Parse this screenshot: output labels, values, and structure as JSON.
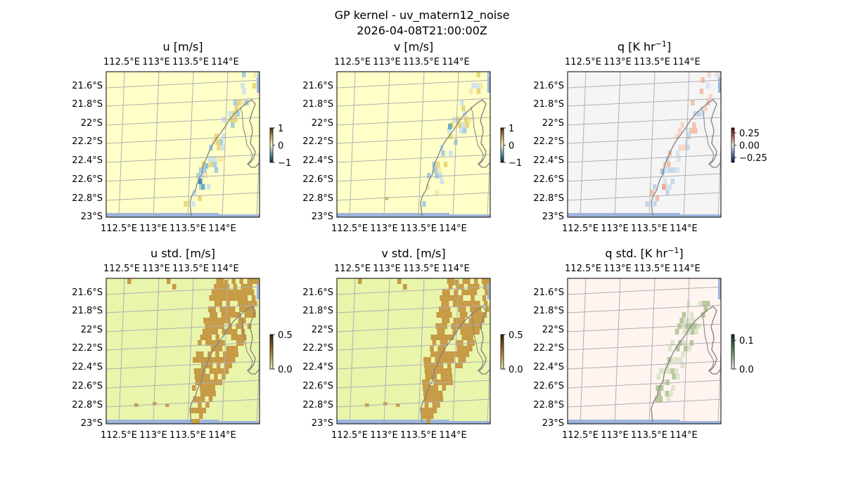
{
  "figure": {
    "title_line1": "GP kernel - uv_matern12_noise",
    "title_line2": "2026-04-08T21:00:00Z"
  },
  "chart_data": [
    {
      "type": "heatmap",
      "title": "u [m/s]",
      "xticks": [
        "112.5°E",
        "113°E",
        "113.5°E",
        "114°E"
      ],
      "yticks": [
        "21.6°S",
        "21.8°S",
        "22°S",
        "22.2°S",
        "22.4°S",
        "22.6°S",
        "22.8°S",
        "23°S"
      ],
      "colorbar": {
        "ticks": [
          "1",
          "0",
          "−1"
        ],
        "range": [
          -1,
          1
        ]
      },
      "background_color": "#ffffc8",
      "features": "sparse blue/yellow cells along coastline near 113.8°E",
      "cmap": "u"
    },
    {
      "type": "heatmap",
      "title": "v [m/s]",
      "xticks": [
        "112.5°E",
        "113°E",
        "113.5°E",
        "114°E"
      ],
      "yticks": [
        "21.6°S",
        "21.8°S",
        "22°S",
        "22.2°S",
        "22.4°S",
        "22.6°S",
        "22.8°S",
        "23°S"
      ],
      "colorbar": {
        "ticks": [
          "1",
          "0",
          "−1"
        ],
        "range": [
          -1,
          1
        ]
      },
      "background_color": "#ffffc8",
      "features": "sparse light cells along coastline",
      "cmap": "v"
    },
    {
      "type": "heatmap",
      "title": "q [K hr⁻¹]",
      "title_main": "q [K hr",
      "title_sup": "−1",
      "title_end": "]",
      "xticks": [
        "112.5°E",
        "113°E",
        "113.5°E",
        "114°E"
      ],
      "yticks": [
        "21.6°S",
        "21.8°S",
        "22°S",
        "22.2°S",
        "22.4°S",
        "22.6°S",
        "22.8°S",
        "23°S"
      ],
      "colorbar": {
        "ticks": [
          "0.25",
          "0.00",
          "−0.25"
        ],
        "range": [
          -0.35,
          0.35
        ]
      },
      "background_color": "#f5f5f5",
      "features": "faint red/blue cells along coastline",
      "cmap": "q"
    },
    {
      "type": "heatmap",
      "title": "u std. [m/s]",
      "xticks": [
        "112.5°E",
        "113°E",
        "113.5°E",
        "114°E"
      ],
      "yticks": [
        "21.6°S",
        "21.8°S",
        "22°S",
        "22.2°S",
        "22.4°S",
        "22.6°S",
        "22.8°S",
        "23°S"
      ],
      "colorbar": {
        "ticks": [
          "0.5",
          "0.0"
        ],
        "range": [
          0,
          0.5
        ]
      },
      "background_color": "#e9f5ab",
      "features": "brown high-std cells along coastline band",
      "cmap": "std"
    },
    {
      "type": "heatmap",
      "title": "v std. [m/s]",
      "xticks": [
        "112.5°E",
        "113°E",
        "113.5°E",
        "114°E"
      ],
      "yticks": [
        "21.6°S",
        "21.8°S",
        "22°S",
        "22.2°S",
        "22.4°S",
        "22.6°S",
        "22.8°S",
        "23°S"
      ],
      "colorbar": {
        "ticks": [
          "0.5",
          "0.0"
        ],
        "range": [
          0,
          0.5
        ]
      },
      "background_color": "#e9f5ab",
      "features": "brown high-std cells along coastline band",
      "cmap": "std"
    },
    {
      "type": "heatmap",
      "title": "q std. [K hr⁻¹]",
      "title_main": "q std. [K hr",
      "title_sup": "−1",
      "title_end": "]",
      "xticks": [
        "112.5°E",
        "113°E",
        "113.5°E",
        "114°E"
      ],
      "yticks": [
        "21.6°S",
        "21.8°S",
        "22°S",
        "22.2°S",
        "22.4°S",
        "22.6°S",
        "22.8°S",
        "23°S"
      ],
      "colorbar": {
        "ticks": [
          "0.1",
          "0.0"
        ],
        "range": [
          0,
          0.12
        ]
      },
      "background_color": "#fff4f0",
      "features": "pale green cells along coastline band",
      "cmap": "qstd"
    }
  ]
}
